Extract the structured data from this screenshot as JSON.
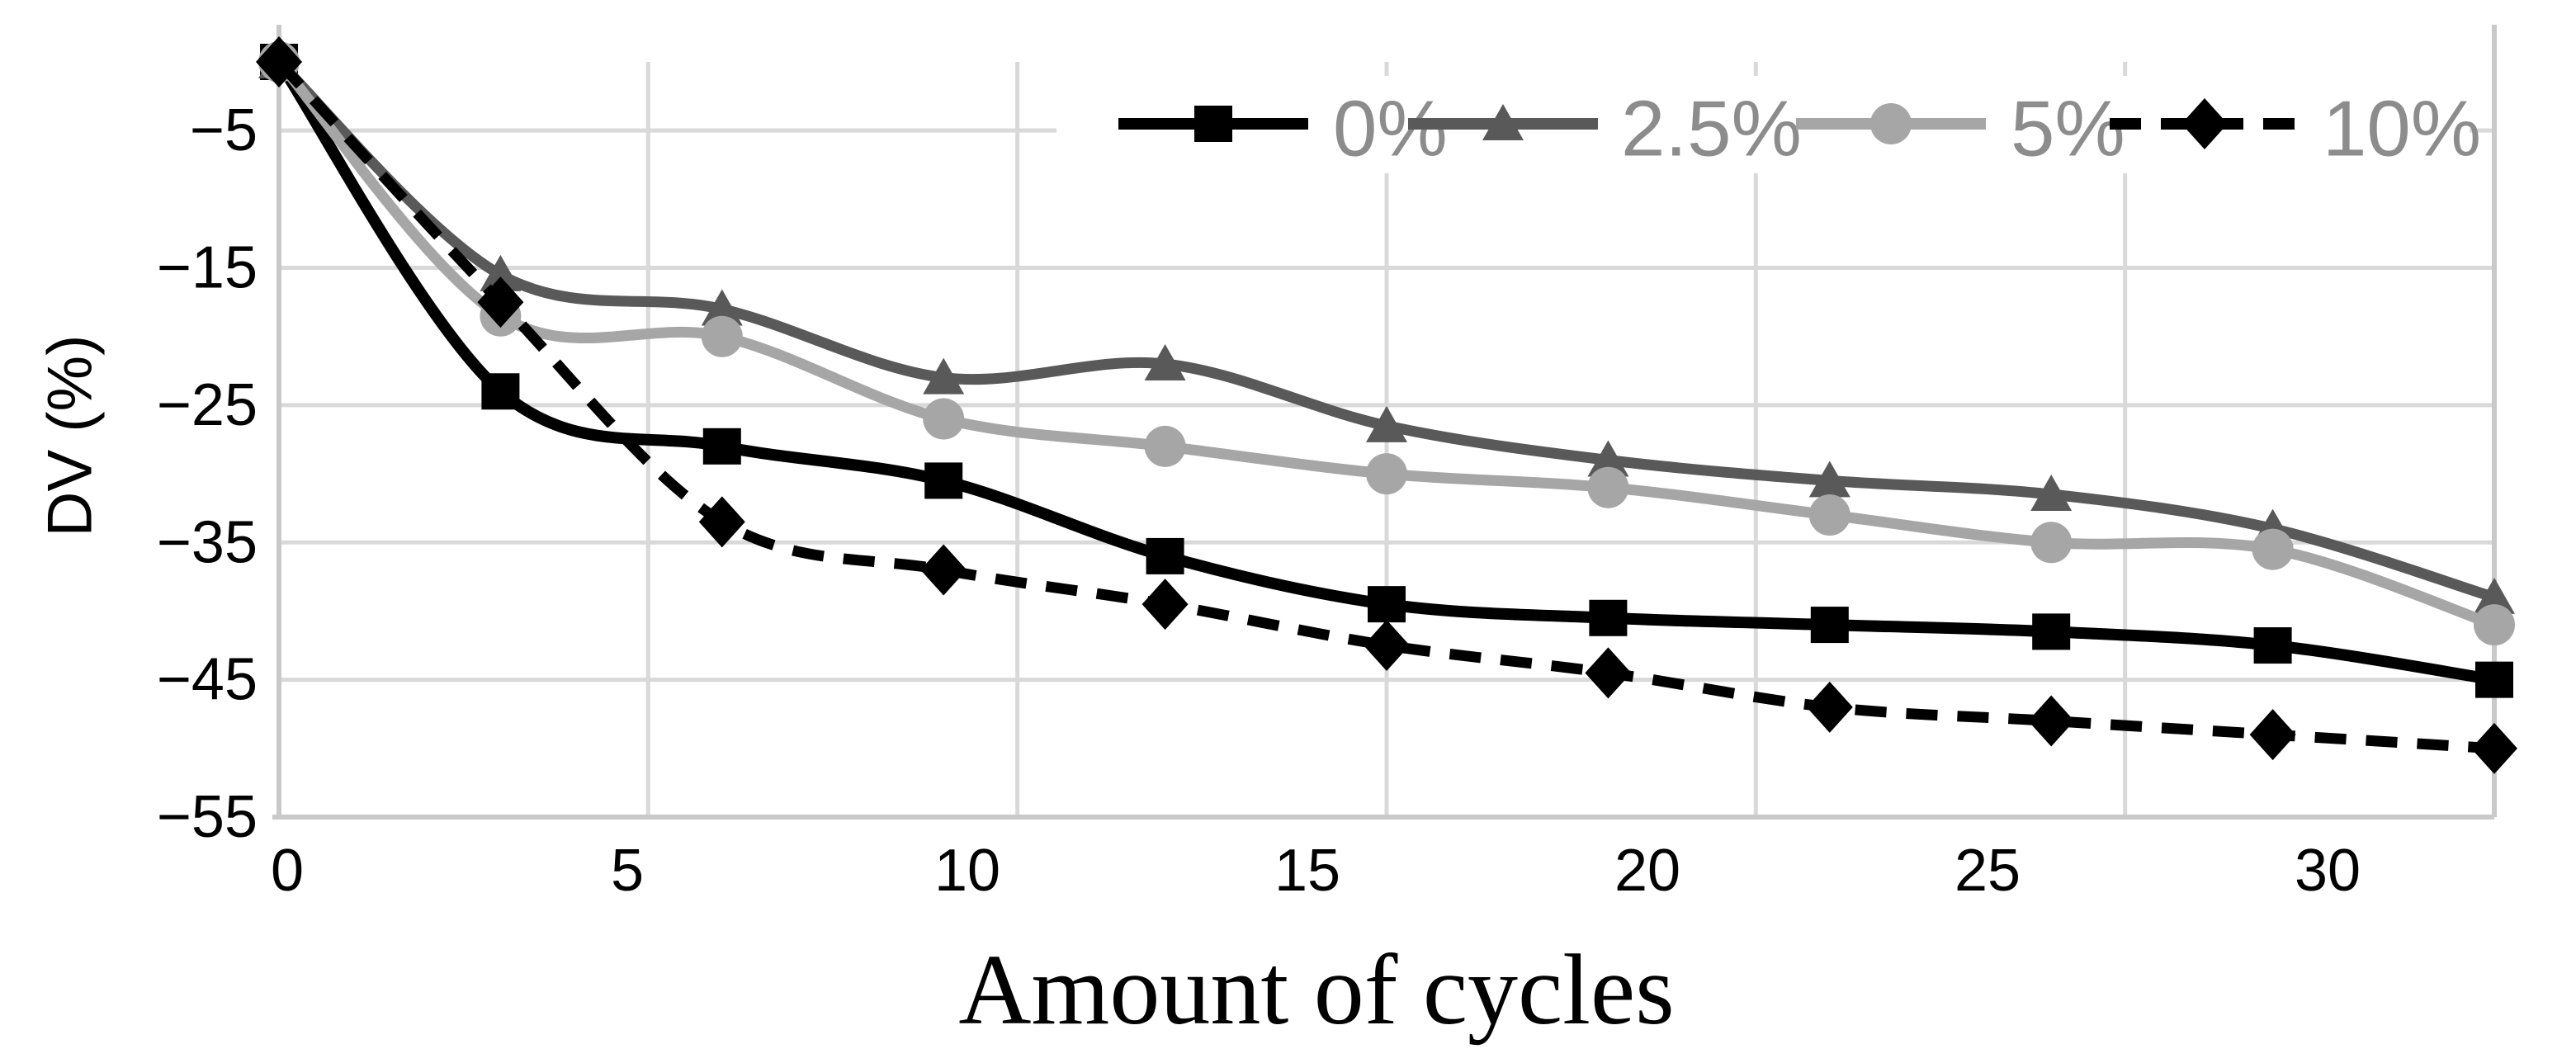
{
  "chart_data": {
    "type": "line",
    "x": [
      0,
      3,
      6,
      9,
      12,
      15,
      18,
      21,
      24,
      27,
      30
    ],
    "series": [
      {
        "name": "0%",
        "color": "#000000",
        "marker": "square",
        "line": "solid",
        "values": [
          0,
          -24,
          -28,
          -30.5,
          -36,
          -39.5,
          -40.5,
          -41,
          -41.5,
          -42.5,
          -45
        ]
      },
      {
        "name": "2.5%",
        "color": "#595959",
        "marker": "triangle",
        "line": "solid",
        "values": [
          0,
          -15.5,
          -18,
          -23,
          -22,
          -26.5,
          -29,
          -30.5,
          -31.5,
          -34,
          -39
        ]
      },
      {
        "name": "5%",
        "color": "#a6a6a6",
        "marker": "circle",
        "line": "solid",
        "values": [
          0,
          -18.5,
          -20,
          -26,
          -28,
          -30,
          -31,
          -33,
          -35,
          -35.5,
          -41
        ]
      },
      {
        "name": "10%",
        "color": "#000000",
        "marker": "diamond",
        "line": "dashed",
        "values": [
          0,
          -17.5,
          -33.5,
          -37,
          -39.5,
          -42.5,
          -44.5,
          -47,
          -48,
          -49,
          -50
        ]
      }
    ],
    "xlabel": "Amount of cycles",
    "ylabel": "DV (%)",
    "xlim": [
      0,
      30
    ],
    "ylim": [
      -55,
      0
    ],
    "xticks": [
      0,
      5,
      10,
      15,
      20,
      25,
      30
    ],
    "xtick_labels": [
      "0",
      "5",
      "10",
      "15",
      "20",
      "25",
      "30"
    ],
    "yticks": [
      -5,
      -15,
      -25,
      -35,
      -45,
      -55
    ],
    "ytick_labels": [
      "−5",
      "−15",
      "−25",
      "−35",
      "−45",
      "−55"
    ],
    "grid": true,
    "legend_position": "top-right",
    "smoothed_lines": true
  },
  "colors": {
    "background": "#ffffff",
    "gridline": "#d9d9d9",
    "axis_border": "#c9c9c9",
    "tick_label": "#000000",
    "legend_text": "#8c8c8c"
  }
}
